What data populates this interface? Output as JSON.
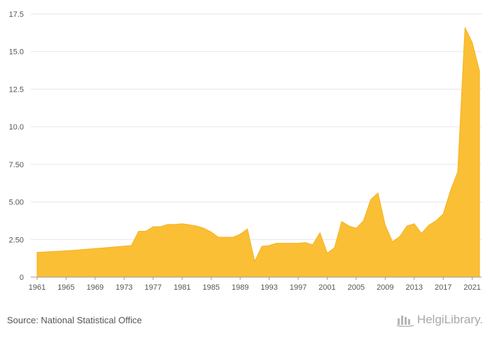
{
  "chart_data": {
    "type": "area",
    "x": [
      1961,
      1962,
      1963,
      1964,
      1965,
      1966,
      1967,
      1968,
      1969,
      1970,
      1971,
      1972,
      1973,
      1974,
      1975,
      1976,
      1977,
      1978,
      1979,
      1980,
      1981,
      1982,
      1983,
      1984,
      1985,
      1986,
      1987,
      1988,
      1989,
      1990,
      1991,
      1992,
      1993,
      1994,
      1995,
      1996,
      1997,
      1998,
      1999,
      2000,
      2001,
      2002,
      2003,
      2004,
      2005,
      2006,
      2007,
      2008,
      2009,
      2010,
      2011,
      2012,
      2013,
      2014,
      2015,
      2016,
      2017,
      2018,
      2019,
      2020,
      2021,
      2022
    ],
    "series": [
      {
        "values": [
          1.65,
          1.67,
          1.7,
          1.72,
          1.75,
          1.78,
          1.82,
          1.86,
          1.9,
          1.94,
          1.98,
          2.02,
          2.06,
          2.1,
          3.05,
          3.05,
          3.35,
          3.35,
          3.5,
          3.5,
          3.55,
          3.48,
          3.4,
          3.25,
          3.0,
          2.65,
          2.65,
          2.65,
          2.85,
          3.2,
          1.05,
          2.05,
          2.1,
          2.25,
          2.25,
          2.25,
          2.25,
          2.3,
          2.15,
          2.95,
          1.6,
          1.95,
          3.7,
          3.4,
          3.25,
          3.75,
          5.15,
          5.6,
          3.45,
          2.35,
          2.7,
          3.4,
          3.55,
          2.9,
          3.45,
          3.75,
          4.2,
          5.75,
          7.0,
          16.6,
          15.6,
          13.7
        ]
      }
    ],
    "xticks": [
      "1961",
      "1965",
      "1969",
      "1973",
      "1977",
      "1981",
      "1985",
      "1989",
      "1993",
      "1997",
      "2001",
      "2005",
      "2009",
      "2013",
      "2017",
      "2021"
    ],
    "yticks": [
      "0",
      "2.50",
      "5.00",
      "7.50",
      "10.0",
      "12.5",
      "15.0",
      "17.5"
    ],
    "ylim": [
      0,
      17.5
    ],
    "grid": true,
    "colors": {
      "fill": "#fbbf35",
      "stroke": "#f4b21b",
      "grid": "#e6e6e6",
      "axis": "#999999"
    }
  },
  "footer": {
    "source": "Source: National Statistical Office",
    "brand_left": "Helgi",
    "brand_right": "Library.",
    "brand_icon": "helgi-library-logo-icon"
  }
}
